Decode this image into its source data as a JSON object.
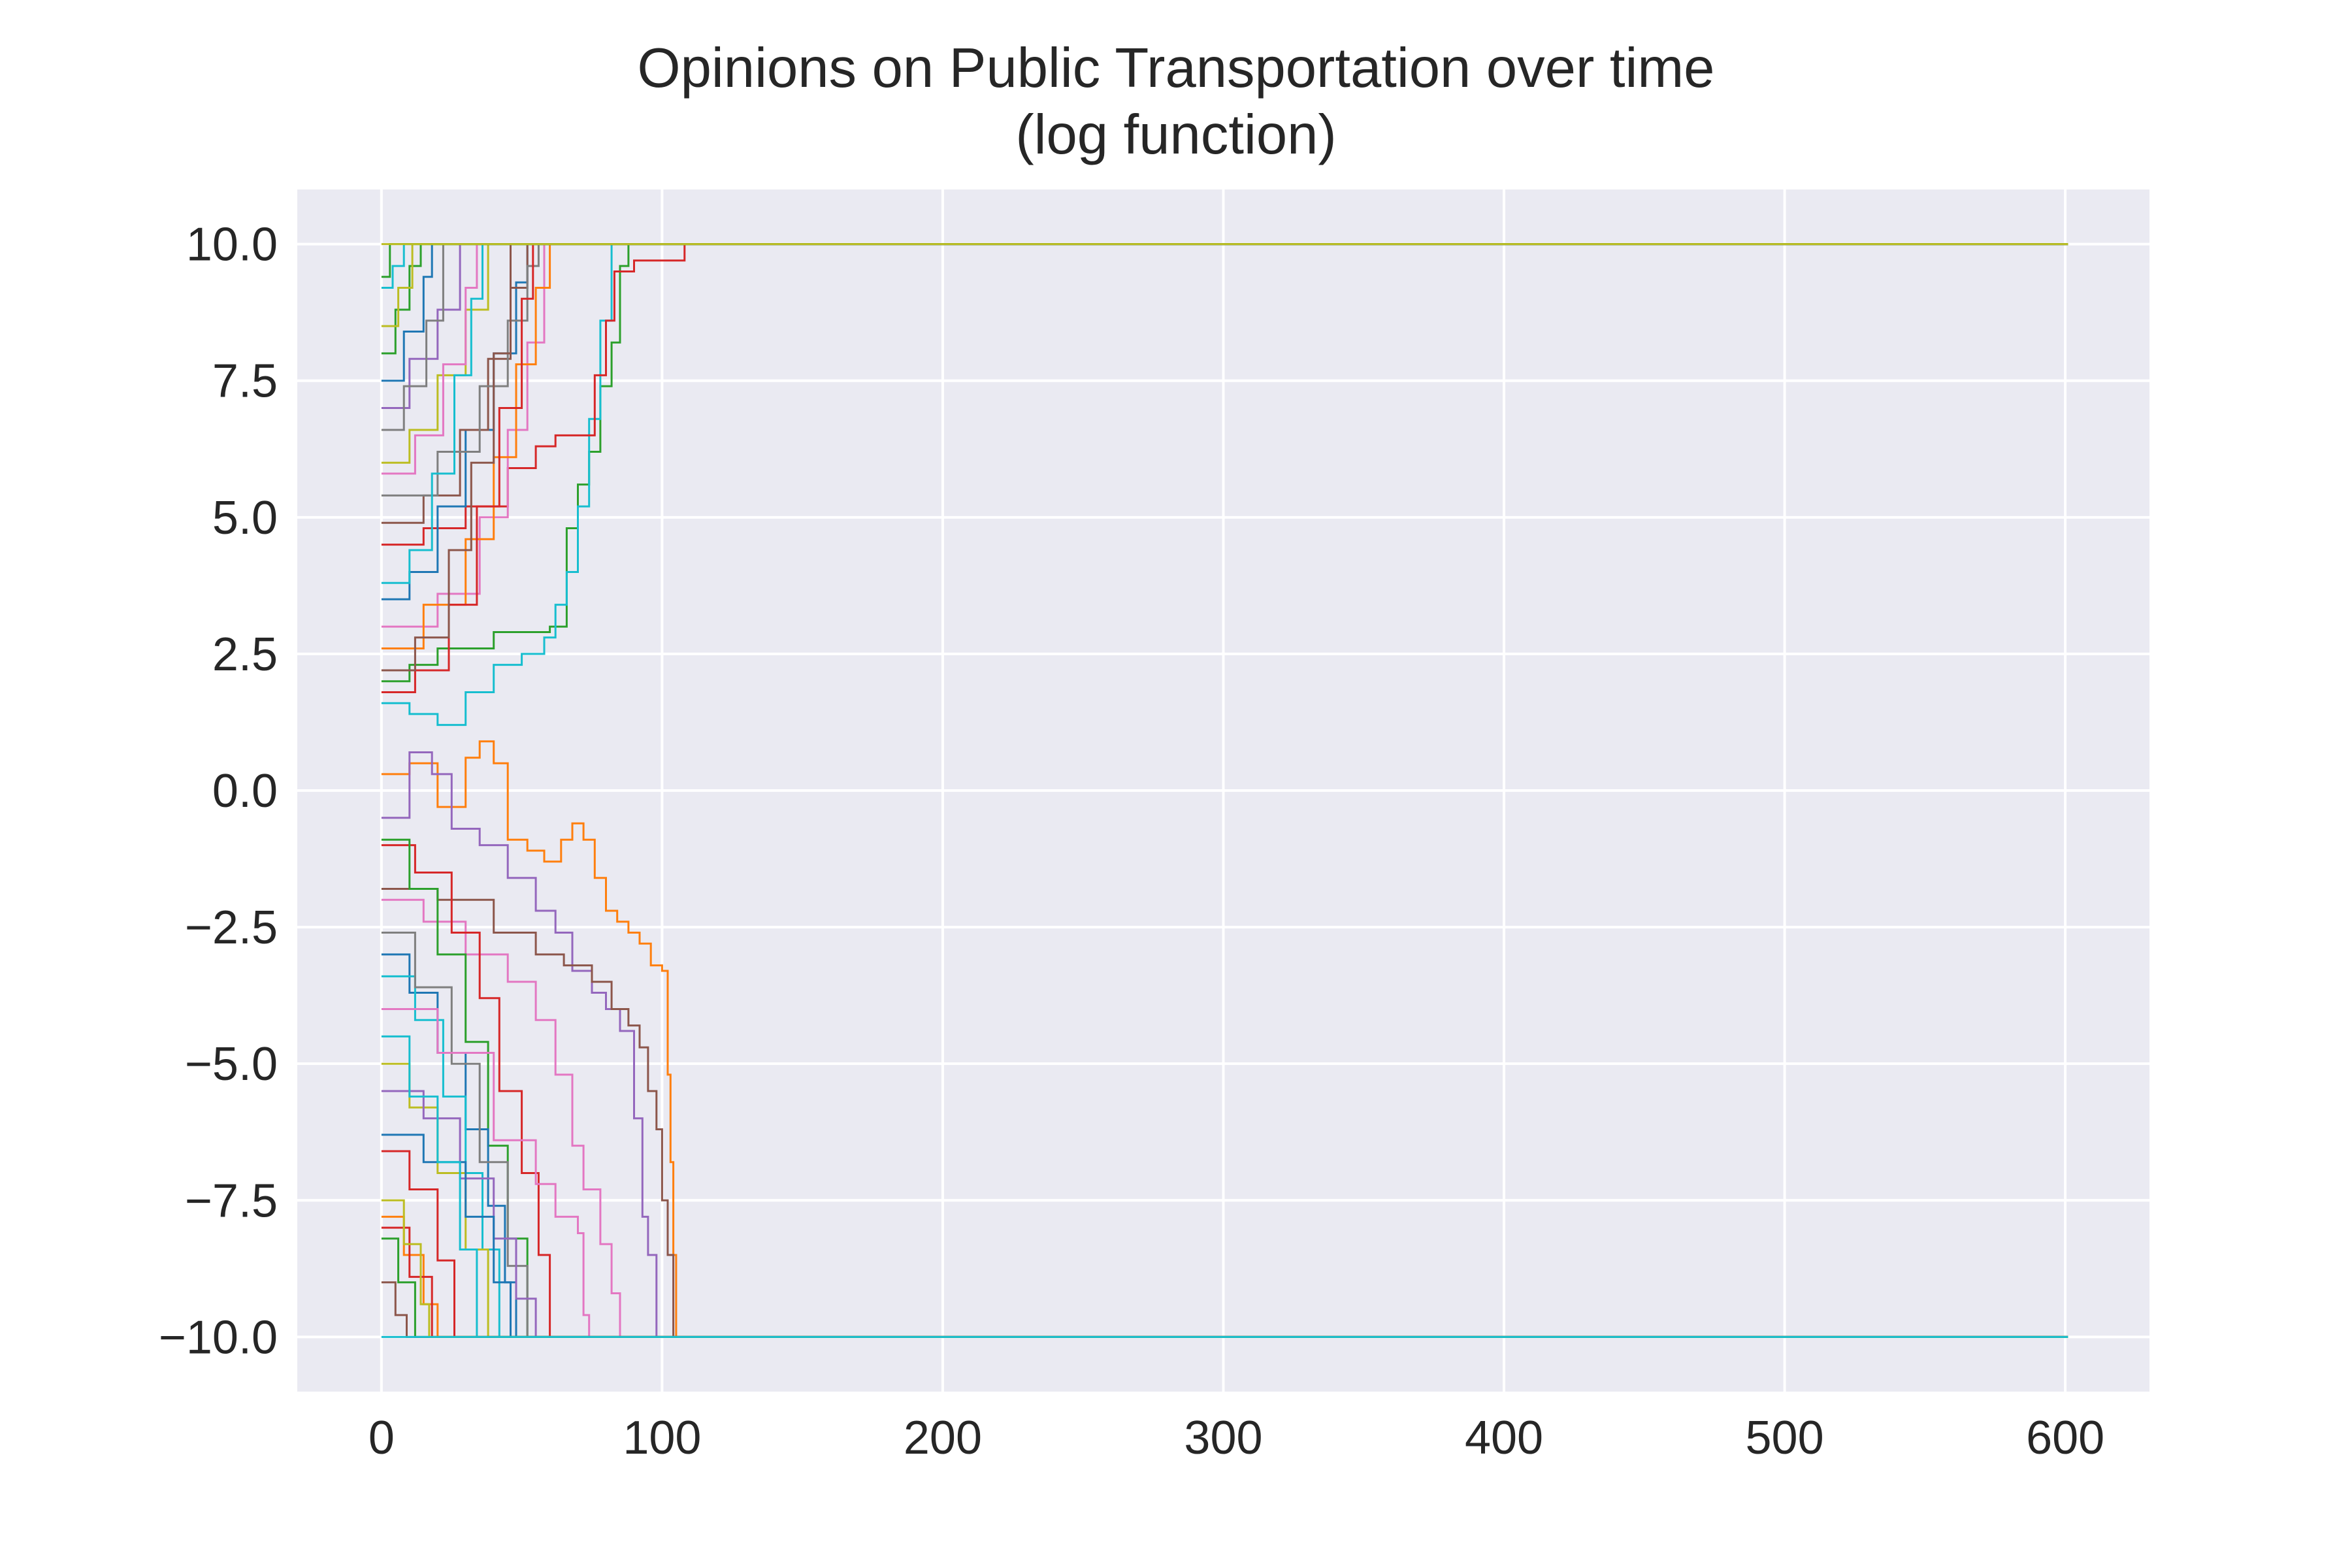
{
  "chart_data": {
    "type": "line",
    "title": "Opinions on Public Transportation over time",
    "subtitle": "(log function)",
    "xlabel": "",
    "ylabel": "",
    "xlim": [
      -30,
      630
    ],
    "ylim": [
      -11,
      11
    ],
    "x_ticks": [
      0,
      100,
      200,
      300,
      400,
      500,
      600
    ],
    "x_tick_labels": [
      "0",
      "100",
      "200",
      "300",
      "400",
      "500",
      "600"
    ],
    "y_ticks": [
      10.0,
      7.5,
      5.0,
      2.5,
      0.0,
      -2.5,
      -5.0,
      -7.5,
      -10.0
    ],
    "y_tick_labels": [
      "10.0",
      "7.5",
      "5.0",
      "2.5",
      "0.0",
      "−2.5",
      "−5.0",
      "−7.5",
      "−10.0"
    ],
    "grid": true,
    "legend": "none",
    "x_max": 601,
    "series": [
      {
        "color": "#ff7f0e",
        "values": [
          [
            0,
            0.3
          ],
          [
            10,
            0.5
          ],
          [
            20,
            -0.3
          ],
          [
            30,
            0.6
          ],
          [
            35,
            0.9
          ],
          [
            40,
            0.5
          ],
          [
            45,
            -0.9
          ],
          [
            52,
            -1.1
          ],
          [
            58,
            -1.3
          ],
          [
            64,
            -0.9
          ],
          [
            68,
            -0.6
          ],
          [
            72,
            -0.9
          ],
          [
            76,
            -1.6
          ],
          [
            80,
            -2.2
          ],
          [
            84,
            -2.4
          ],
          [
            88,
            -2.6
          ],
          [
            92,
            -2.8
          ],
          [
            96,
            -3.2
          ],
          [
            100,
            -3.3
          ],
          [
            102,
            -5.2
          ],
          [
            103,
            -6.8
          ],
          [
            104,
            -8.5
          ],
          [
            105,
            -10
          ]
        ]
      },
      {
        "color": "#9467bd",
        "values": [
          [
            0,
            -0.5
          ],
          [
            10,
            0.7
          ],
          [
            18,
            0.3
          ],
          [
            25,
            -0.7
          ],
          [
            35,
            -1.0
          ],
          [
            45,
            -1.6
          ],
          [
            55,
            -2.2
          ],
          [
            62,
            -2.6
          ],
          [
            68,
            -3.3
          ],
          [
            75,
            -3.7
          ],
          [
            80,
            -4.0
          ],
          [
            85,
            -4.4
          ],
          [
            90,
            -6.0
          ],
          [
            93,
            -7.8
          ],
          [
            95,
            -8.5
          ],
          [
            98,
            -10
          ]
        ]
      },
      {
        "color": "#8c564b",
        "values": [
          [
            0,
            -1.8
          ],
          [
            20,
            -2.0
          ],
          [
            40,
            -2.6
          ],
          [
            55,
            -3.0
          ],
          [
            65,
            -3.2
          ],
          [
            75,
            -3.5
          ],
          [
            82,
            -4.0
          ],
          [
            88,
            -4.3
          ],
          [
            92,
            -4.7
          ],
          [
            95,
            -5.5
          ],
          [
            98,
            -6.2
          ],
          [
            100,
            -7.5
          ],
          [
            102,
            -8.5
          ],
          [
            104,
            -10
          ]
        ]
      },
      {
        "color": "#e377c2",
        "values": [
          [
            0,
            -2.0
          ],
          [
            15,
            -2.4
          ],
          [
            30,
            -3.0
          ],
          [
            45,
            -3.5
          ],
          [
            55,
            -4.2
          ],
          [
            62,
            -5.2
          ],
          [
            68,
            -6.5
          ],
          [
            72,
            -7.3
          ],
          [
            78,
            -8.3
          ],
          [
            82,
            -9.2
          ],
          [
            85,
            -10
          ]
        ]
      },
      {
        "color": "#d62728",
        "values": [
          [
            0,
            -1.0
          ],
          [
            12,
            -1.5
          ],
          [
            25,
            -2.6
          ],
          [
            35,
            -3.8
          ],
          [
            42,
            -5.5
          ],
          [
            50,
            -7.0
          ],
          [
            56,
            -8.5
          ],
          [
            60,
            -10
          ]
        ]
      },
      {
        "color": "#2ca02c",
        "values": [
          [
            0,
            -0.9
          ],
          [
            10,
            -1.8
          ],
          [
            20,
            -3.0
          ],
          [
            30,
            -4.6
          ],
          [
            38,
            -6.5
          ],
          [
            45,
            -8.2
          ],
          [
            52,
            -10
          ]
        ]
      },
      {
        "color": "#1f77b4",
        "values": [
          [
            0,
            -3.0
          ],
          [
            10,
            -3.7
          ],
          [
            20,
            -4.8
          ],
          [
            30,
            -6.2
          ],
          [
            38,
            -7.6
          ],
          [
            44,
            -9.0
          ],
          [
            48,
            -10
          ]
        ]
      },
      {
        "color": "#17becf",
        "values": [
          [
            0,
            -3.4
          ],
          [
            12,
            -4.2
          ],
          [
            22,
            -5.6
          ],
          [
            30,
            -7.0
          ],
          [
            36,
            -8.4
          ],
          [
            42,
            -10
          ]
        ]
      },
      {
        "color": "#bcbd22",
        "values": [
          [
            0,
            -5.0
          ],
          [
            10,
            -5.8
          ],
          [
            20,
            -7.0
          ],
          [
            30,
            -8.4
          ],
          [
            38,
            -10
          ]
        ]
      },
      {
        "color": "#7f7f7f",
        "values": [
          [
            0,
            -2.6
          ],
          [
            12,
            -3.6
          ],
          [
            25,
            -5.0
          ],
          [
            35,
            -6.8
          ],
          [
            45,
            -8.7
          ],
          [
            52,
            -10
          ]
        ]
      },
      {
        "color": "#9467bd",
        "values": [
          [
            0,
            -5.5
          ],
          [
            15,
            -6.0
          ],
          [
            28,
            -7.1
          ],
          [
            40,
            -8.2
          ],
          [
            48,
            -9.3
          ],
          [
            55,
            -10
          ]
        ]
      },
      {
        "color": "#e377c2",
        "values": [
          [
            0,
            -4.0
          ],
          [
            20,
            -4.8
          ],
          [
            40,
            -6.4
          ],
          [
            55,
            -7.2
          ],
          [
            62,
            -7.8
          ],
          [
            70,
            -8.1
          ],
          [
            72,
            -9.6
          ],
          [
            74,
            -10
          ]
        ]
      },
      {
        "color": "#d62728",
        "values": [
          [
            0,
            -6.6
          ],
          [
            10,
            -7.3
          ],
          [
            20,
            -8.6
          ],
          [
            26,
            -10
          ]
        ]
      },
      {
        "color": "#1f77b4",
        "values": [
          [
            0,
            -6.3
          ],
          [
            15,
            -6.8
          ],
          [
            30,
            -7.8
          ],
          [
            40,
            -9.0
          ],
          [
            46,
            -10
          ]
        ]
      },
      {
        "color": "#ff7f0e",
        "values": [
          [
            0,
            -7.8
          ],
          [
            8,
            -8.5
          ],
          [
            15,
            -9.4
          ],
          [
            20,
            -10
          ]
        ]
      },
      {
        "color": "#2ca02c",
        "values": [
          [
            0,
            -8.2
          ],
          [
            6,
            -9.0
          ],
          [
            12,
            -10
          ]
        ]
      },
      {
        "color": "#8c564b",
        "values": [
          [
            0,
            -9.0
          ],
          [
            5,
            -9.6
          ],
          [
            9,
            -10
          ]
        ]
      },
      {
        "color": "#17becf",
        "values": [
          [
            0,
            -4.5
          ],
          [
            10,
            -5.6
          ],
          [
            20,
            -6.8
          ],
          [
            28,
            -8.4
          ],
          [
            34,
            -10
          ]
        ]
      },
      {
        "color": "#d62728",
        "values": [
          [
            0,
            -8.0
          ],
          [
            10,
            -8.9
          ],
          [
            18,
            -10
          ]
        ]
      },
      {
        "color": "#bcbd22",
        "values": [
          [
            0,
            -7.5
          ],
          [
            8,
            -8.3
          ],
          [
            14,
            -9.4
          ],
          [
            17,
            -10
          ]
        ]
      },
      {
        "color": "#2ca02c",
        "values": [
          [
            0,
            2.0
          ],
          [
            10,
            2.3
          ],
          [
            20,
            2.6
          ],
          [
            40,
            2.9
          ],
          [
            60,
            3.0
          ],
          [
            64,
            3.0
          ],
          [
            66,
            4.8
          ],
          [
            70,
            5.6
          ],
          [
            74,
            6.2
          ],
          [
            78,
            7.4
          ],
          [
            82,
            8.2
          ],
          [
            85,
            9.6
          ],
          [
            88,
            10
          ]
        ]
      },
      {
        "color": "#17becf",
        "values": [
          [
            0,
            1.6
          ],
          [
            10,
            1.4
          ],
          [
            20,
            1.2
          ],
          [
            30,
            1.8
          ],
          [
            40,
            2.3
          ],
          [
            50,
            2.5
          ],
          [
            58,
            2.8
          ],
          [
            62,
            3.4
          ],
          [
            66,
            4.0
          ],
          [
            70,
            5.2
          ],
          [
            74,
            6.8
          ],
          [
            78,
            8.6
          ],
          [
            82,
            10
          ]
        ]
      },
      {
        "color": "#d62728",
        "values": [
          [
            0,
            4.5
          ],
          [
            15,
            4.8
          ],
          [
            30,
            5.2
          ],
          [
            45,
            5.9
          ],
          [
            55,
            6.3
          ],
          [
            62,
            6.5
          ],
          [
            70,
            6.5
          ],
          [
            76,
            7.6
          ],
          [
            80,
            8.6
          ],
          [
            83,
            9.5
          ],
          [
            90,
            9.7
          ],
          [
            100,
            9.7
          ],
          [
            108,
            10
          ]
        ]
      },
      {
        "color": "#1f77b4",
        "values": [
          [
            0,
            3.5
          ],
          [
            10,
            4.0
          ],
          [
            20,
            5.2
          ],
          [
            30,
            6.6
          ],
          [
            40,
            8.0
          ],
          [
            48,
            9.3
          ],
          [
            52,
            10
          ]
        ]
      },
      {
        "color": "#bcbd22",
        "values": [
          [
            0,
            6.0
          ],
          [
            10,
            6.6
          ],
          [
            20,
            7.6
          ],
          [
            30,
            8.8
          ],
          [
            38,
            10
          ]
        ]
      },
      {
        "color": "#8c564b",
        "values": [
          [
            0,
            4.9
          ],
          [
            15,
            5.4
          ],
          [
            28,
            6.6
          ],
          [
            38,
            7.9
          ],
          [
            46,
            9.2
          ],
          [
            52,
            10
          ]
        ]
      },
      {
        "color": "#e377c2",
        "values": [
          [
            0,
            3.0
          ],
          [
            20,
            3.6
          ],
          [
            35,
            5.0
          ],
          [
            45,
            6.6
          ],
          [
            52,
            8.2
          ],
          [
            58,
            10
          ]
        ]
      },
      {
        "color": "#7f7f7f",
        "values": [
          [
            0,
            5.4
          ],
          [
            20,
            6.2
          ],
          [
            35,
            7.4
          ],
          [
            45,
            8.6
          ],
          [
            52,
            9.6
          ],
          [
            56,
            10
          ]
        ]
      },
      {
        "color": "#9467bd",
        "values": [
          [
            0,
            7.0
          ],
          [
            10,
            7.9
          ],
          [
            20,
            8.8
          ],
          [
            28,
            10
          ]
        ]
      },
      {
        "color": "#ff7f0e",
        "values": [
          [
            0,
            2.6
          ],
          [
            15,
            3.4
          ],
          [
            30,
            4.6
          ],
          [
            40,
            6.1
          ],
          [
            48,
            7.8
          ],
          [
            55,
            9.2
          ],
          [
            60,
            10
          ]
        ]
      },
      {
        "color": "#2ca02c",
        "values": [
          [
            0,
            8.0
          ],
          [
            5,
            8.8
          ],
          [
            10,
            9.6
          ],
          [
            14,
            10
          ]
        ]
      },
      {
        "color": "#1f77b4",
        "values": [
          [
            0,
            7.5
          ],
          [
            8,
            8.4
          ],
          [
            15,
            9.4
          ],
          [
            18,
            10
          ]
        ]
      },
      {
        "color": "#d62728",
        "values": [
          [
            0,
            1.8
          ],
          [
            12,
            2.2
          ],
          [
            24,
            3.4
          ],
          [
            34,
            5.2
          ],
          [
            42,
            7.0
          ],
          [
            50,
            9.0
          ],
          [
            54,
            10
          ]
        ]
      },
      {
        "color": "#17becf",
        "values": [
          [
            0,
            9.2
          ],
          [
            4,
            9.6
          ],
          [
            8,
            10
          ]
        ]
      },
      {
        "color": "#bcbd22",
        "values": [
          [
            0,
            8.5
          ],
          [
            6,
            9.2
          ],
          [
            11,
            10
          ]
        ]
      },
      {
        "color": "#8c564b",
        "values": [
          [
            0,
            2.2
          ],
          [
            12,
            2.8
          ],
          [
            24,
            4.4
          ],
          [
            32,
            6.0
          ],
          [
            40,
            8.0
          ],
          [
            46,
            10
          ]
        ]
      },
      {
        "color": "#e377c2",
        "values": [
          [
            0,
            5.8
          ],
          [
            12,
            6.5
          ],
          [
            22,
            7.8
          ],
          [
            30,
            9.2
          ],
          [
            34,
            10
          ]
        ]
      },
      {
        "color": "#17becf",
        "values": [
          [
            0,
            3.8
          ],
          [
            10,
            4.4
          ],
          [
            18,
            5.8
          ],
          [
            26,
            7.6
          ],
          [
            32,
            9.0
          ],
          [
            36,
            10
          ]
        ]
      },
      {
        "color": "#7f7f7f",
        "values": [
          [
            0,
            6.6
          ],
          [
            8,
            7.4
          ],
          [
            16,
            8.6
          ],
          [
            22,
            10
          ]
        ]
      },
      {
        "color": "#2ca02c",
        "values": [
          [
            0,
            9.4
          ],
          [
            3,
            10
          ]
        ]
      },
      {
        "color": "#bcbd22",
        "values": [
          [
            0,
            10.0
          ],
          [
            601,
            10.0
          ]
        ]
      },
      {
        "color": "#17becf",
        "values": [
          [
            0,
            -10.0
          ],
          [
            601,
            -10.0
          ]
        ]
      }
    ]
  }
}
